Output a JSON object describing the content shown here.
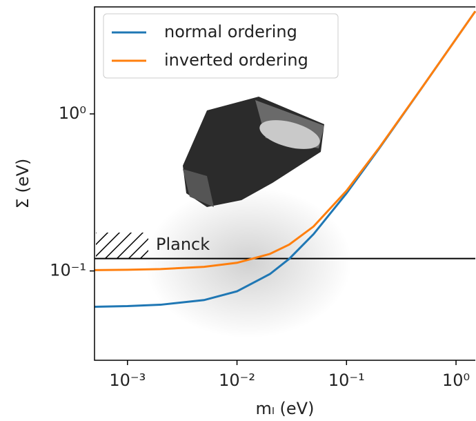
{
  "chart_data": {
    "type": "line",
    "xlabel": "mₗ (eV)",
    "ylabel": "Σ (eV)",
    "xscale": "log",
    "yscale": "log",
    "x": [
      0.0005,
      0.001,
      0.002,
      0.005,
      0.01,
      0.02,
      0.03,
      0.05,
      0.1,
      0.2,
      0.5,
      1,
      1.5
    ],
    "series": [
      {
        "name": "normal ordering",
        "color": "#1f77b4",
        "values": [
          0.05918,
          0.05973,
          0.06093,
          0.06525,
          0.07422,
          0.09564,
          0.1195,
          0.1715,
          0.3122,
          0.6063,
          1.5026,
          3.0013,
          4.5009
        ]
      },
      {
        "name": "inverted ordering",
        "color": "#ff7f0e",
        "values": [
          0.10125,
          0.10176,
          0.10282,
          0.10624,
          0.11271,
          0.12839,
          0.14726,
          0.19195,
          0.32394,
          0.61249,
          1.50507,
          3.00254,
          4.50169
        ]
      }
    ],
    "xlim": [
      0.0005,
      1.5
    ],
    "ylim": [
      0.027,
      4.8
    ],
    "xticks": [
      {
        "value": 0.001,
        "label": "10⁻³"
      },
      {
        "value": 0.01,
        "label": "10⁻²"
      },
      {
        "value": 0.1,
        "label": "10⁻¹"
      },
      {
        "value": 1,
        "label": "10⁰"
      }
    ],
    "yticks": [
      {
        "value": 0.1,
        "label": "10⁻¹"
      },
      {
        "value": 1,
        "label": "10⁰"
      }
    ],
    "limit_line": {
      "label": "Planck",
      "value": 0.12,
      "color": "#000000"
    },
    "legend": "upper left",
    "grid": false
  }
}
